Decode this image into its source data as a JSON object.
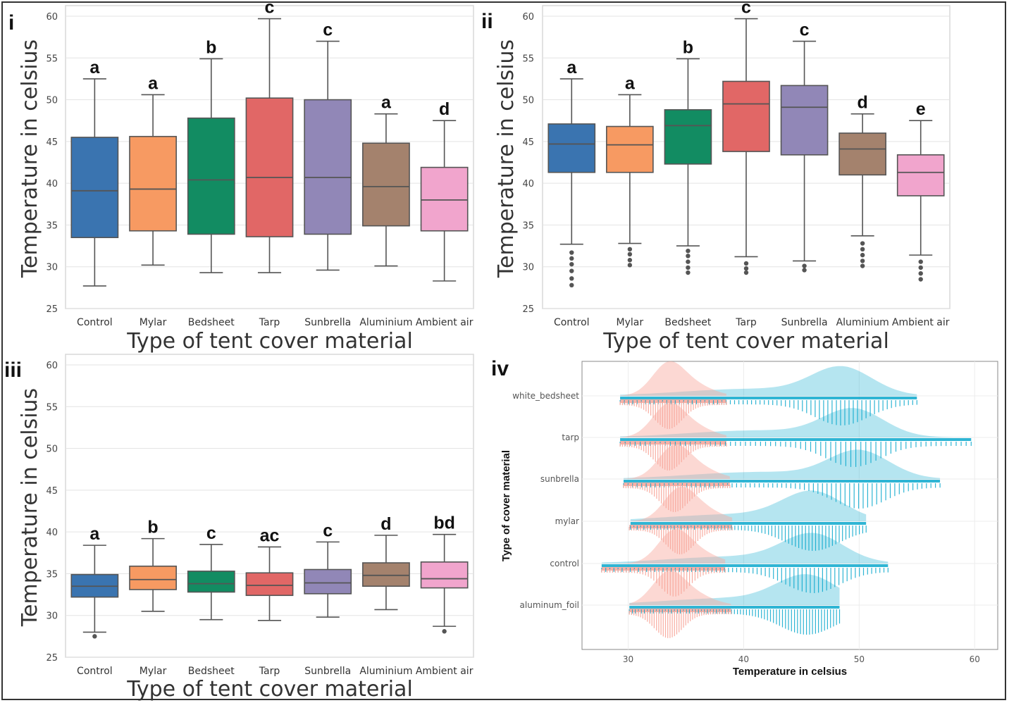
{
  "panels": [
    {
      "label": "i",
      "xlabel": "Type of tent cover material",
      "ylabel": "Temperature in celsius"
    },
    {
      "label": "ii",
      "xlabel": "Type of tent cover material",
      "ylabel": "Temperature in celsius"
    },
    {
      "label": "iii",
      "xlabel": "Type of tent cover material",
      "ylabel": "Temperature in celsius"
    },
    {
      "label": "iv",
      "xlabel": "Temperature in celsius",
      "ylabel": "Type of cover material"
    }
  ],
  "colors": {
    "Control": "#3a74b0",
    "Mylar": "#f79a62",
    "Bedsheet": "#128c62",
    "Tarp": "#e16766",
    "Sunbrella": "#9187b7",
    "Aluminium": "#a4826d",
    "Ambient air": "#f1a5cd",
    "ambient_ridge": "#f8a99d",
    "tent_ridge": "#0aa8cc"
  },
  "chart_data": [
    {
      "type": "box",
      "panel": "i",
      "categories": [
        "Control",
        "Mylar",
        "Bedsheet",
        "Tarp",
        "Sunbrella",
        "Aluminium",
        "Ambient air"
      ],
      "ylim": [
        25,
        60
      ],
      "yticks": [
        25,
        30,
        35,
        40,
        45,
        50,
        55,
        60
      ],
      "grid": true,
      "boxes": [
        {
          "q1": 33.5,
          "median": 39.1,
          "q3": 45.5,
          "whisker_low": 27.7,
          "whisker_high": 52.5,
          "letter": "a",
          "outliers": []
        },
        {
          "q1": 34.3,
          "median": 39.3,
          "q3": 45.6,
          "whisker_low": 30.2,
          "whisker_high": 50.6,
          "letter": "a",
          "outliers": []
        },
        {
          "q1": 33.9,
          "median": 40.4,
          "q3": 47.8,
          "whisker_low": 29.3,
          "whisker_high": 54.9,
          "letter": "b",
          "outliers": []
        },
        {
          "q1": 33.6,
          "median": 40.7,
          "q3": 50.2,
          "whisker_low": 29.3,
          "whisker_high": 59.7,
          "letter": "c",
          "outliers": []
        },
        {
          "q1": 33.9,
          "median": 40.7,
          "q3": 50.0,
          "whisker_low": 29.6,
          "whisker_high": 57.0,
          "letter": "c",
          "outliers": []
        },
        {
          "q1": 34.9,
          "median": 39.6,
          "q3": 44.8,
          "whisker_low": 30.1,
          "whisker_high": 48.3,
          "letter": "a",
          "outliers": []
        },
        {
          "q1": 34.3,
          "median": 38.0,
          "q3": 41.9,
          "whisker_low": 28.3,
          "whisker_high": 47.5,
          "letter": "d",
          "outliers": []
        }
      ]
    },
    {
      "type": "box",
      "panel": "ii",
      "categories": [
        "Control",
        "Mylar",
        "Bedsheet",
        "Tarp",
        "Sunbrella",
        "Aluminium",
        "Ambient air"
      ],
      "ylim": [
        25,
        60
      ],
      "yticks": [
        25,
        30,
        35,
        40,
        45,
        50,
        55,
        60
      ],
      "grid": true,
      "boxes": [
        {
          "q1": 41.3,
          "median": 44.7,
          "q3": 47.1,
          "whisker_low": 32.7,
          "whisker_high": 52.5,
          "letter": "a",
          "outliers": [
            27.8,
            28.6,
            29.5,
            30.3,
            31.0,
            31.7
          ]
        },
        {
          "q1": 41.3,
          "median": 44.6,
          "q3": 46.8,
          "whisker_low": 32.8,
          "whisker_high": 50.6,
          "letter": "a",
          "outliers": [
            30.2,
            30.8,
            31.5,
            32.1
          ]
        },
        {
          "q1": 42.3,
          "median": 46.9,
          "q3": 48.8,
          "whisker_low": 32.5,
          "whisker_high": 54.9,
          "letter": "b",
          "outliers": [
            29.3,
            29.9,
            30.6,
            31.3,
            31.9
          ]
        },
        {
          "q1": 43.8,
          "median": 49.5,
          "q3": 52.2,
          "whisker_low": 31.2,
          "whisker_high": 59.7,
          "letter": "c",
          "outliers": [
            29.3,
            29.8,
            30.4
          ]
        },
        {
          "q1": 43.4,
          "median": 49.1,
          "q3": 51.7,
          "whisker_low": 30.7,
          "whisker_high": 57.0,
          "letter": "c",
          "outliers": [
            29.6,
            30.1
          ]
        },
        {
          "q1": 41.0,
          "median": 44.1,
          "q3": 46.0,
          "whisker_low": 33.7,
          "whisker_high": 48.3,
          "letter": "d",
          "outliers": [
            30.1,
            30.7,
            31.4,
            32.1,
            32.8
          ]
        },
        {
          "q1": 38.5,
          "median": 41.3,
          "q3": 43.4,
          "whisker_low": 31.4,
          "whisker_high": 47.5,
          "letter": "e",
          "outliers": [
            28.5,
            29.2,
            29.9,
            30.6
          ]
        }
      ]
    },
    {
      "type": "box",
      "panel": "iii",
      "categories": [
        "Control",
        "Mylar",
        "Bedsheet",
        "Tarp",
        "Sunbrella",
        "Aluminium",
        "Ambient air"
      ],
      "ylim": [
        25,
        60
      ],
      "yticks": [
        25,
        30,
        35,
        40,
        45,
        50,
        55,
        60
      ],
      "grid": true,
      "boxes": [
        {
          "q1": 32.2,
          "median": 33.5,
          "q3": 34.9,
          "whisker_low": 28.0,
          "whisker_high": 38.4,
          "letter": "a",
          "outliers": [
            27.5
          ]
        },
        {
          "q1": 33.1,
          "median": 34.3,
          "q3": 35.9,
          "whisker_low": 30.5,
          "whisker_high": 39.2,
          "letter": "b",
          "outliers": []
        },
        {
          "q1": 32.8,
          "median": 33.8,
          "q3": 35.3,
          "whisker_low": 29.5,
          "whisker_high": 38.5,
          "letter": "c",
          "outliers": []
        },
        {
          "q1": 32.4,
          "median": 33.6,
          "q3": 35.1,
          "whisker_low": 29.4,
          "whisker_high": 38.2,
          "letter": "ac",
          "outliers": []
        },
        {
          "q1": 32.6,
          "median": 33.9,
          "q3": 35.5,
          "whisker_low": 29.8,
          "whisker_high": 38.8,
          "letter": "c",
          "outliers": []
        },
        {
          "q1": 33.5,
          "median": 34.8,
          "q3": 36.3,
          "whisker_low": 30.7,
          "whisker_high": 39.6,
          "letter": "d",
          "outliers": []
        },
        {
          "q1": 33.3,
          "median": 34.4,
          "q3": 36.4,
          "whisker_low": 28.7,
          "whisker_high": 39.7,
          "letter": "bd",
          "outliers": [
            28.1
          ]
        }
      ]
    },
    {
      "type": "ridgeline",
      "panel": "iv",
      "categories": [
        "white_bedsheet",
        "tarp",
        "sunbrella",
        "mylar",
        "control",
        "aluminum_foil"
      ],
      "xlim": [
        26,
        62
      ],
      "xticks": [
        30,
        40,
        50,
        60
      ],
      "grid": true,
      "ridges": [
        {
          "ambient_range": [
            29.3,
            38.5
          ],
          "ambient_peak": 33.5,
          "tent_range": [
            29.3,
            55.0
          ],
          "tent_peak": 48.5
        },
        {
          "ambient_range": [
            29.3,
            38.5
          ],
          "ambient_peak": 33.5,
          "tent_range": [
            29.3,
            59.7
          ],
          "tent_peak": 49.5
        },
        {
          "ambient_range": [
            29.6,
            38.8
          ],
          "ambient_peak": 34.0,
          "tent_range": [
            29.6,
            57.0
          ],
          "tent_peak": 50.0
        },
        {
          "ambient_range": [
            30.1,
            39.0
          ],
          "ambient_peak": 34.5,
          "tent_range": [
            30.2,
            50.6
          ],
          "tent_peak": 46.0
        },
        {
          "ambient_range": [
            27.7,
            38.4
          ],
          "ambient_peak": 34.0,
          "tent_range": [
            27.7,
            52.5
          ],
          "tent_peak": 46.0
        },
        {
          "ambient_range": [
            30.1,
            38.9
          ],
          "ambient_peak": 33.5,
          "tent_range": [
            30.1,
            48.3
          ],
          "tent_peak": 45.5
        }
      ]
    }
  ]
}
